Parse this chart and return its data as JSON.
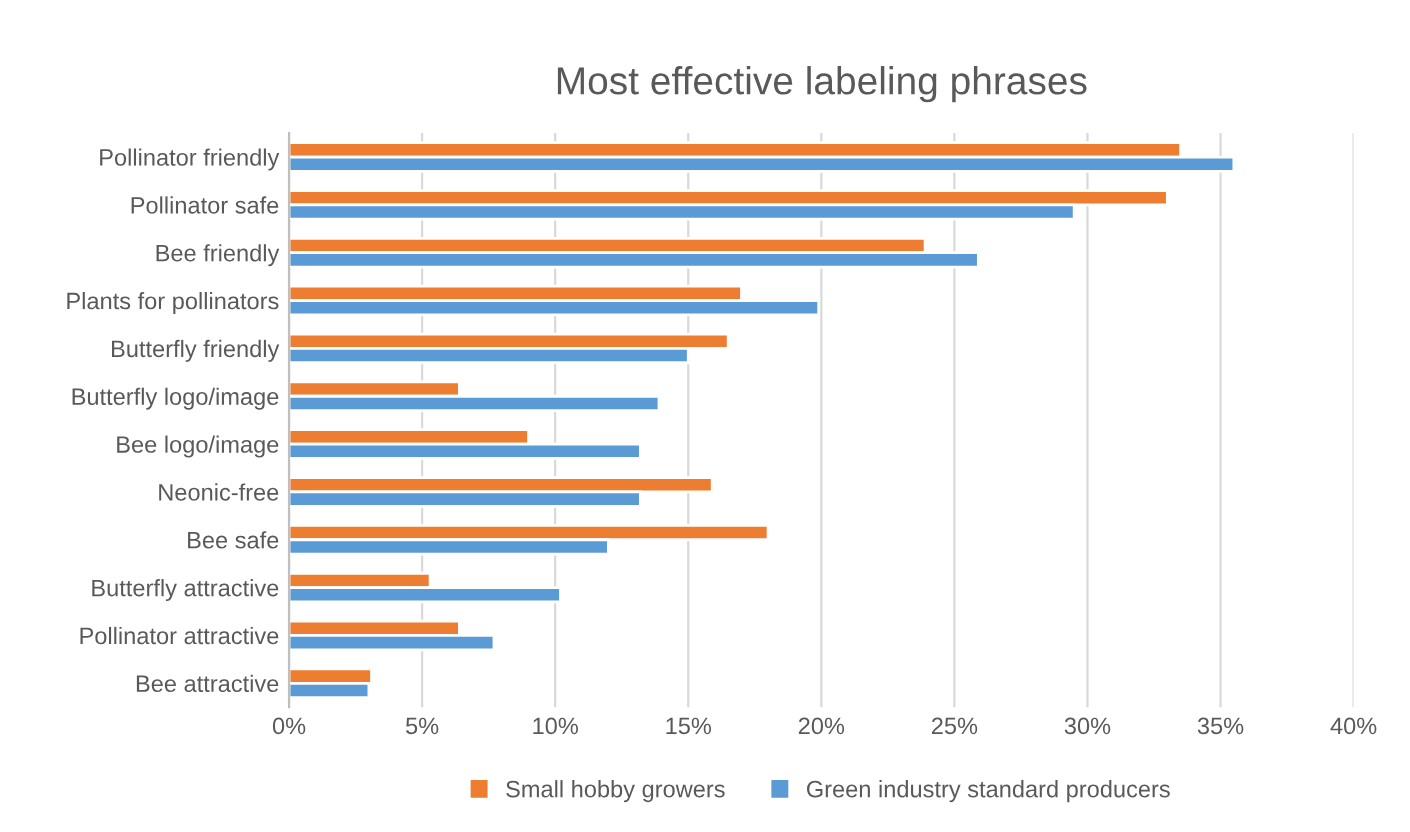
{
  "chart_data": {
    "type": "bar",
    "orientation": "horizontal",
    "title": "Most effective labeling phrases",
    "categories": [
      "Pollinator friendly",
      "Pollinator safe",
      "Bee friendly",
      "Plants for pollinators",
      "Butterfly friendly",
      "Butterfly logo/image",
      "Bee logo/image",
      "Neonic-free",
      "Bee safe",
      "Butterfly attractive",
      "Pollinator attractive",
      "Bee attractive"
    ],
    "series": [
      {
        "name": "Small hobby growers",
        "color": "#ed7d31",
        "values": [
          33.5,
          33.0,
          23.9,
          17.0,
          16.5,
          6.4,
          9.0,
          15.9,
          18.0,
          5.3,
          6.4,
          3.1
        ]
      },
      {
        "name": "Green industry standard producers",
        "color": "#5b9bd5",
        "values": [
          35.5,
          29.5,
          25.9,
          19.9,
          15.0,
          13.9,
          13.2,
          13.2,
          12.0,
          10.2,
          7.7,
          3.0
        ]
      }
    ],
    "xlim": [
      0,
      40
    ],
    "xticks": [
      {
        "value": 0,
        "label": "0%"
      },
      {
        "value": 5,
        "label": "5%"
      },
      {
        "value": 10,
        "label": "10%"
      },
      {
        "value": 15,
        "label": "15%"
      },
      {
        "value": 20,
        "label": "20%"
      },
      {
        "value": 25,
        "label": "25%"
      },
      {
        "value": 30,
        "label": "30%"
      },
      {
        "value": 35,
        "label": "35%"
      },
      {
        "value": 40,
        "label": "40%"
      }
    ],
    "grid": "x",
    "legend": "bottom"
  }
}
